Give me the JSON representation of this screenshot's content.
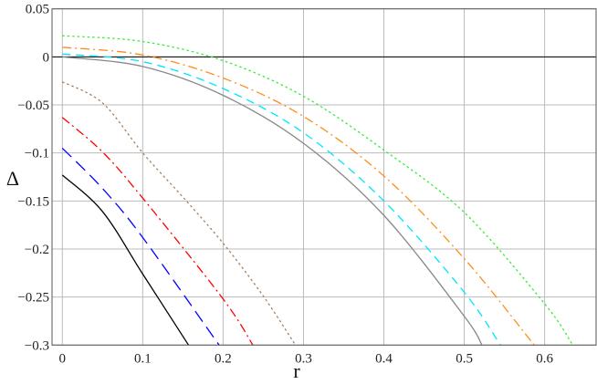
{
  "chart_data": {
    "type": "line",
    "title": "",
    "xlabel": "r",
    "ylabel": "Δ",
    "xlim": [
      -0.0128,
      0.664
    ],
    "ylim": [
      -0.3,
      0.05
    ],
    "grid": true,
    "x_ticks": [
      "0",
      "0.1",
      "0.2",
      "0.3",
      "0.4",
      "0.5",
      "0.6"
    ],
    "x_tick_values": [
      0,
      0.1,
      0.2,
      0.3,
      0.4,
      0.5,
      0.6
    ],
    "y_ticks": [
      "0.05",
      "0",
      "−0.05",
      "−0.1",
      "−0.15",
      "−0.2",
      "−0.25",
      "−0.3"
    ],
    "y_tick_values": [
      0.05,
      0,
      -0.05,
      -0.1,
      -0.15,
      -0.2,
      -0.25,
      -0.3
    ],
    "reference_line": {
      "y": 0,
      "color": "#000000"
    },
    "series": [
      {
        "color": "#000000",
        "style": "solid",
        "points": [
          [
            0,
            -0.123
          ],
          [
            0.05,
            -0.161
          ],
          [
            0.1,
            -0.226
          ],
          [
            0.157,
            -0.3
          ]
        ]
      },
      {
        "color": "#0000ff",
        "style": "long-dash",
        "points": [
          [
            0,
            -0.095
          ],
          [
            0.05,
            -0.137
          ],
          [
            0.1,
            -0.188
          ],
          [
            0.195,
            -0.3
          ]
        ]
      },
      {
        "color": "#ff0000",
        "style": "dash-dot",
        "points": [
          [
            0,
            -0.063
          ],
          [
            0.05,
            -0.099
          ],
          [
            0.1,
            -0.147
          ],
          [
            0.2,
            -0.252
          ],
          [
            0.237,
            -0.3
          ]
        ]
      },
      {
        "color": "#a8805c",
        "style": "dotted",
        "points": [
          [
            0,
            -0.026
          ],
          [
            0.05,
            -0.048
          ],
          [
            0.1,
            -0.1
          ],
          [
            0.15,
            -0.146
          ],
          [
            0.2,
            -0.194
          ],
          [
            0.25,
            -0.249
          ],
          [
            0.29,
            -0.3
          ]
        ]
      },
      {
        "color": "#888888",
        "style": "solid",
        "points": [
          [
            0,
            0
          ],
          [
            0.1,
            -0.01
          ],
          [
            0.2,
            -0.04
          ],
          [
            0.3,
            -0.09
          ],
          [
            0.4,
            -0.165
          ],
          [
            0.5,
            -0.27
          ],
          [
            0.522,
            -0.3
          ]
        ]
      },
      {
        "color": "#00e5ff",
        "style": "dashed",
        "points": [
          [
            0,
            0.003
          ],
          [
            0.1,
            -0.005
          ],
          [
            0.2,
            -0.033
          ],
          [
            0.3,
            -0.079
          ],
          [
            0.4,
            -0.15
          ],
          [
            0.5,
            -0.245
          ],
          [
            0.545,
            -0.3
          ]
        ]
      },
      {
        "color": "#ff8c1a",
        "style": "dash-dot",
        "points": [
          [
            0,
            0.01
          ],
          [
            0.1,
            0.002
          ],
          [
            0.2,
            -0.022
          ],
          [
            0.3,
            -0.062
          ],
          [
            0.4,
            -0.124
          ],
          [
            0.5,
            -0.21
          ],
          [
            0.587,
            -0.3
          ]
        ]
      },
      {
        "color": "#33ee33",
        "style": "dotted",
        "points": [
          [
            0,
            0.022
          ],
          [
            0.1,
            0.016
          ],
          [
            0.2,
            -0.004
          ],
          [
            0.3,
            -0.041
          ],
          [
            0.4,
            -0.097
          ],
          [
            0.5,
            -0.162
          ],
          [
            0.6,
            -0.257
          ],
          [
            0.635,
            -0.3
          ]
        ]
      }
    ]
  }
}
